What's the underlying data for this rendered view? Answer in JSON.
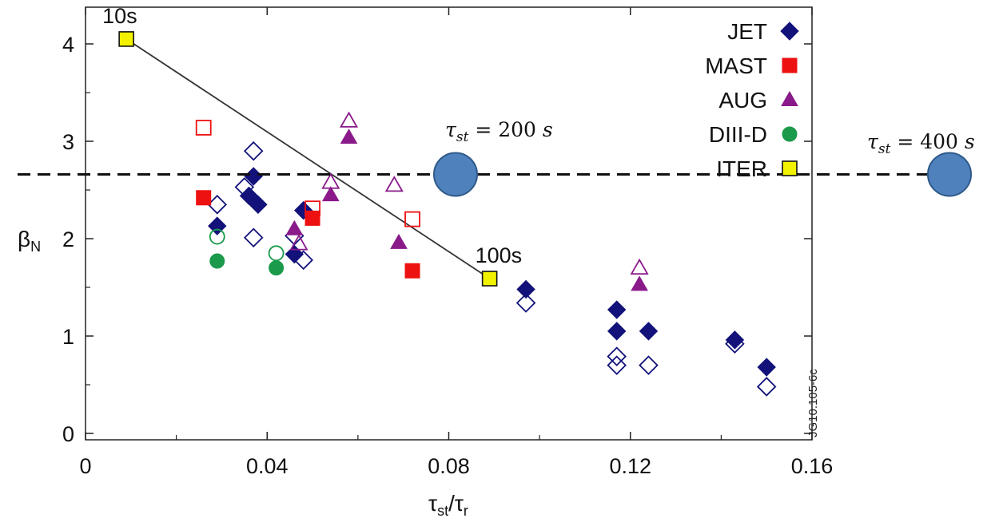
{
  "chart_data": {
    "type": "scatter",
    "xlabel": "τst/τr",
    "ylabel": "βN",
    "xlim": [
      0,
      0.16
    ],
    "ylim": [
      -0.05,
      4.45
    ],
    "x_ticks": [
      0,
      0.04,
      0.08,
      0.12,
      0.16
    ],
    "x_tick_labels": [
      "0",
      "0.04",
      "0.08",
      "0.12",
      "0.16"
    ],
    "y_ticks": [
      0,
      1,
      2,
      3,
      4
    ],
    "y_tick_labels": [
      "0",
      "1",
      "2",
      "3",
      "4"
    ],
    "legend_position": "top-right",
    "legend": [
      {
        "label": "JET",
        "marker": "diamond",
        "color": "#12127a"
      },
      {
        "label": "MAST",
        "marker": "square",
        "color": "#ee1111"
      },
      {
        "label": "AUG",
        "marker": "triangle",
        "color": "#8a1a8a"
      },
      {
        "label": "DIII-D",
        "marker": "circle",
        "color": "#1a9a4a"
      },
      {
        "label": "ITER",
        "marker": "square",
        "color": "#f2f200"
      }
    ],
    "series": [
      {
        "name": "JET",
        "marker": "diamond",
        "color": "#12127a",
        "filled": true,
        "points": [
          [
            0.029,
            2.13
          ],
          [
            0.036,
            2.44
          ],
          [
            0.037,
            2.64
          ],
          [
            0.038,
            2.35
          ],
          [
            0.046,
            1.84
          ],
          [
            0.048,
            2.29
          ],
          [
            0.097,
            1.48
          ],
          [
            0.117,
            1.27
          ],
          [
            0.117,
            1.05
          ],
          [
            0.124,
            1.05
          ],
          [
            0.143,
            0.96
          ],
          [
            0.15,
            0.68
          ]
        ]
      },
      {
        "name": "JET",
        "marker": "diamond",
        "color": "#12127a",
        "filled": false,
        "points": [
          [
            0.029,
            2.35
          ],
          [
            0.035,
            2.53
          ],
          [
            0.037,
            2.9
          ],
          [
            0.037,
            2.01
          ],
          [
            0.046,
            2.03
          ],
          [
            0.048,
            1.78
          ],
          [
            0.097,
            1.34
          ],
          [
            0.117,
            0.79
          ],
          [
            0.117,
            0.7
          ],
          [
            0.124,
            0.7
          ],
          [
            0.143,
            0.92
          ],
          [
            0.15,
            0.48
          ]
        ]
      },
      {
        "name": "MAST",
        "marker": "square",
        "color": "#ee1111",
        "filled": true,
        "points": [
          [
            0.026,
            2.42
          ],
          [
            0.05,
            2.21
          ],
          [
            0.072,
            1.67
          ]
        ]
      },
      {
        "name": "MAST",
        "marker": "square",
        "color": "#ee1111",
        "filled": false,
        "points": [
          [
            0.026,
            3.14
          ],
          [
            0.05,
            2.31
          ],
          [
            0.072,
            2.2
          ]
        ]
      },
      {
        "name": "AUG",
        "marker": "triangle",
        "color": "#8a1a8a",
        "filled": true,
        "points": [
          [
            0.046,
            2.1
          ],
          [
            0.054,
            2.45
          ],
          [
            0.058,
            3.04
          ],
          [
            0.069,
            1.96
          ],
          [
            0.122,
            1.53
          ]
        ]
      },
      {
        "name": "AUG",
        "marker": "triangle",
        "color": "#8a1a8a",
        "filled": false,
        "points": [
          [
            0.047,
            1.95
          ],
          [
            0.054,
            2.58
          ],
          [
            0.058,
            3.21
          ],
          [
            0.068,
            2.55
          ],
          [
            0.122,
            1.7
          ]
        ]
      },
      {
        "name": "DIII-D",
        "marker": "circle",
        "color": "#1a9a4a",
        "filled": true,
        "points": [
          [
            0.029,
            1.77
          ],
          [
            0.042,
            1.7
          ]
        ]
      },
      {
        "name": "DIII-D",
        "marker": "circle",
        "color": "#1a9a4a",
        "filled": false,
        "points": [
          [
            0.029,
            2.02
          ],
          [
            0.042,
            1.85
          ]
        ]
      },
      {
        "name": "ITER",
        "marker": "square",
        "color": "#f2f200",
        "filled": true,
        "points": [
          [
            0.009,
            4.05
          ],
          [
            0.089,
            1.59
          ]
        ]
      }
    ],
    "iter_line": [
      [
        0.009,
        4.05
      ],
      [
        0.089,
        1.59
      ]
    ],
    "point_labels": [
      {
        "text": "10s",
        "x": 0.009,
        "y": 4.05
      },
      {
        "text": "100s",
        "x": 0.089,
        "y": 1.59
      }
    ],
    "dashed_line_y": 2.66,
    "circle_color": "#4f81bd",
    "annotations": [
      {
        "text": "τst = 200 s",
        "circle": "inside-plot"
      },
      {
        "text": "τst = 400 s",
        "circle": "outside-plot-right"
      }
    ],
    "side_code": "JG10.105-6c"
  }
}
